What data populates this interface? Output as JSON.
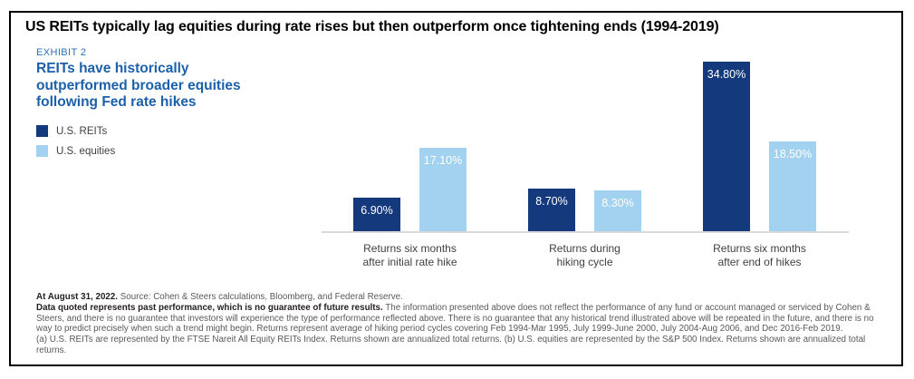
{
  "header": {
    "title": "US REITs typically lag equities during rate rises but then outperform once tightening ends (1994-2019)",
    "exhibit_label": "EXHIBIT 2",
    "subtitle": "REITs have historically outperformed broader equities following Fed rate hikes"
  },
  "colors": {
    "reits_navy": "#15397d",
    "equities_light_blue": "#a3d2f0",
    "exhibit_blue": "#2e6fb2",
    "subtitle_blue": "#1c60aa",
    "axis_line_gray": "#d9d9d9",
    "footnote_gray": "#58595b"
  },
  "chart_data": {
    "type": "bar",
    "title": "REITs have historically outperformed broader equities following Fed rate hikes",
    "categories": [
      "Returns six months\nafter initial rate hike",
      "Returns during\nhiking cycle",
      "Returns six months\nafter end of hikes"
    ],
    "series": [
      {
        "name": "U.S. REITs",
        "color": "#15397d",
        "values": [
          6.9,
          8.7,
          34.8
        ],
        "value_labels": [
          "6.90%",
          "8.70%",
          "34.80%"
        ]
      },
      {
        "name": "U.S. equities",
        "color": "#a3d2f0",
        "values": [
          17.1,
          8.3,
          18.5
        ],
        "value_labels": [
          "17.10%",
          "8.30%",
          "18.50%"
        ]
      }
    ],
    "ylim": [
      0,
      36
    ],
    "grid": false,
    "y_axis_visible": false,
    "value_labels_position": "inside-top",
    "legend_position": "left"
  },
  "footnotes": {
    "para1_bold": "At August 31, 2022.",
    "para1_rest": " Source: Cohen & Steers calculations, Bloomberg, and Federal Reserve.",
    "para2_bold": "Data quoted represents past performance, which is no guarantee of future results.",
    "para2_rest": " The information presented above does not reflect the performance of any fund or account managed or serviced by Cohen & Steers, and there is no guarantee that investors will experience the type of performance reflected above. There is no guarantee that any historical trend illustrated above will be repeated in the future, and there is no way to predict precisely when such a trend might begin. Returns represent average of hiking period cycles covering Feb 1994-Mar 1995, July 1999-June 2000, July 2004-Aug 2006, and Dec 2016-Feb 2019.",
    "para3": "(a) U.S. REITs are represented by the FTSE Nareit All Equity REITs Index. Returns shown are annualized total returns. (b) U.S. equities are represented by the S&P 500 Index. Returns shown are annualized total returns."
  }
}
